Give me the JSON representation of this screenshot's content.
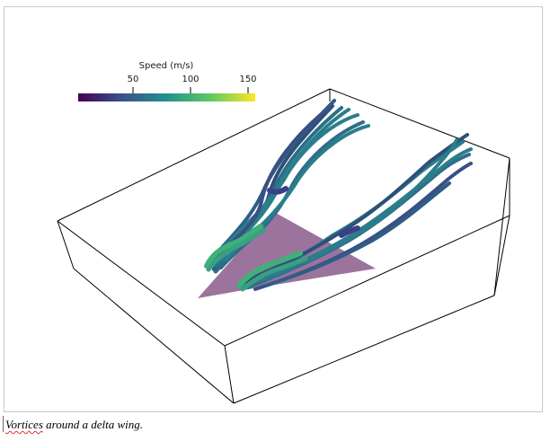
{
  "figure": {
    "colorbar": {
      "title": "Speed (m/s)",
      "ticks": [
        "50",
        "100",
        "150"
      ],
      "colormap": [
        "#440154",
        "#3b528b",
        "#21918c",
        "#5ec962",
        "#fde725"
      ]
    },
    "colors": {
      "wing": "#8a5a8c",
      "bounding_box": "#000000",
      "streamline_dark": "#2e4f7a",
      "streamline_mid": "#2a7d8a",
      "streamline_light": "#3fb07a"
    }
  },
  "caption": {
    "first_word": "Vortices",
    "rest": " around a delta wing."
  }
}
